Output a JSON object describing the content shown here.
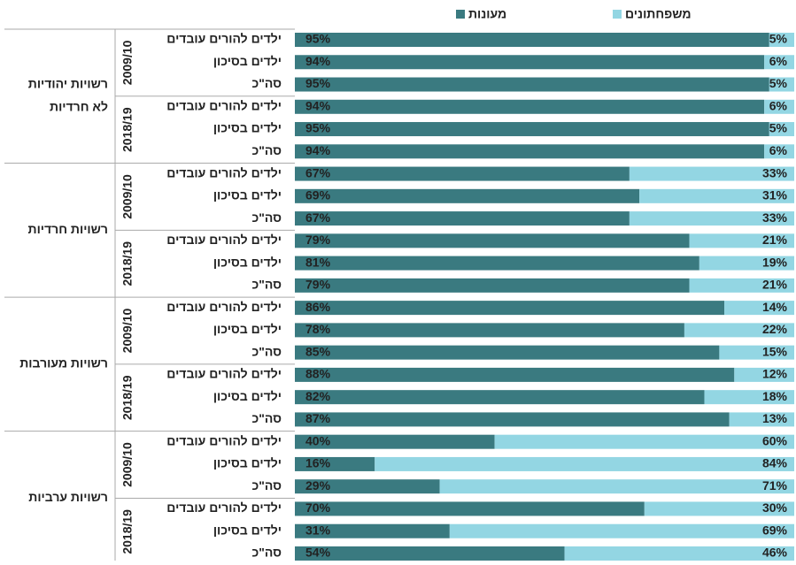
{
  "chart_data": {
    "type": "bar",
    "orientation": "horizontal",
    "stacked": true,
    "xlim": [
      0,
      100
    ],
    "legend_position": "top",
    "categories": [
      "ילדים להורים עובדים",
      "ילדים בסיכון",
      "סה\"כ",
      "ילדים להורים עובדים",
      "ילדים בסיכון",
      "סה\"כ",
      "ילדים להורים עובדים",
      "ילדים בסיכון",
      "סה\"כ",
      "ילדים להורים עובדים",
      "ילדים בסיכון",
      "סה\"כ",
      "ילדים להורים עובדים",
      "ילדים בסיכון",
      "סה\"כ",
      "ילדים להורים עובדים",
      "ילדים בסיכון",
      "סה\"כ",
      "ילדים להורים עובדים",
      "ילדים בסיכון",
      "סה\"כ",
      "ילדים להורים עובדים",
      "ילדים בסיכון",
      "סה\"כ"
    ],
    "groups": [
      {
        "label_lines": [
          "רשויות  יהודיות",
          "לא חרדיות"
        ],
        "periods": [
          "2009/10",
          "2018/19"
        ]
      },
      {
        "label_lines": [
          "רשויות חרדיות"
        ],
        "periods": [
          "2009/10",
          "2018/19"
        ]
      },
      {
        "label_lines": [
          "רשויות מעורבות"
        ],
        "periods": [
          "2009/10",
          "2018/19"
        ]
      },
      {
        "label_lines": [
          "רשויות ערביות"
        ],
        "periods": [
          "2009/10",
          "2018/19"
        ]
      }
    ],
    "series": [
      {
        "name": "מעונות",
        "color": "#3a7a80",
        "values": [
          95,
          94,
          95,
          94,
          95,
          94,
          67,
          69,
          67,
          79,
          81,
          79,
          86,
          78,
          85,
          88,
          82,
          87,
          40,
          16,
          29,
          70,
          31,
          54
        ],
        "value_labels": [
          "95%",
          "94%",
          "95%",
          "94%",
          "95%",
          "94%",
          "67%",
          "69%",
          "67%",
          "79%",
          "81%",
          "79%",
          "86%",
          "78%",
          "85%",
          "88%",
          "82%",
          "87%",
          "40%",
          "16%",
          "29%",
          "70%",
          "31%",
          "54%"
        ]
      },
      {
        "name": "משפחתונים",
        "color": "#93d6e3",
        "values": [
          5,
          6,
          5,
          6,
          5,
          6,
          33,
          31,
          33,
          21,
          19,
          21,
          14,
          22,
          15,
          12,
          18,
          13,
          60,
          84,
          71,
          30,
          69,
          46
        ],
        "value_labels": [
          "5%",
          "6%",
          "5%",
          "6%",
          "5%",
          "6%",
          "33%",
          "31%",
          "33%",
          "21%",
          "19%",
          "21%",
          "14%",
          "22%",
          "15%",
          "12%",
          "18%",
          "13%",
          "60%",
          "84%",
          "71%",
          "30%",
          "69%",
          "46%"
        ]
      }
    ]
  }
}
